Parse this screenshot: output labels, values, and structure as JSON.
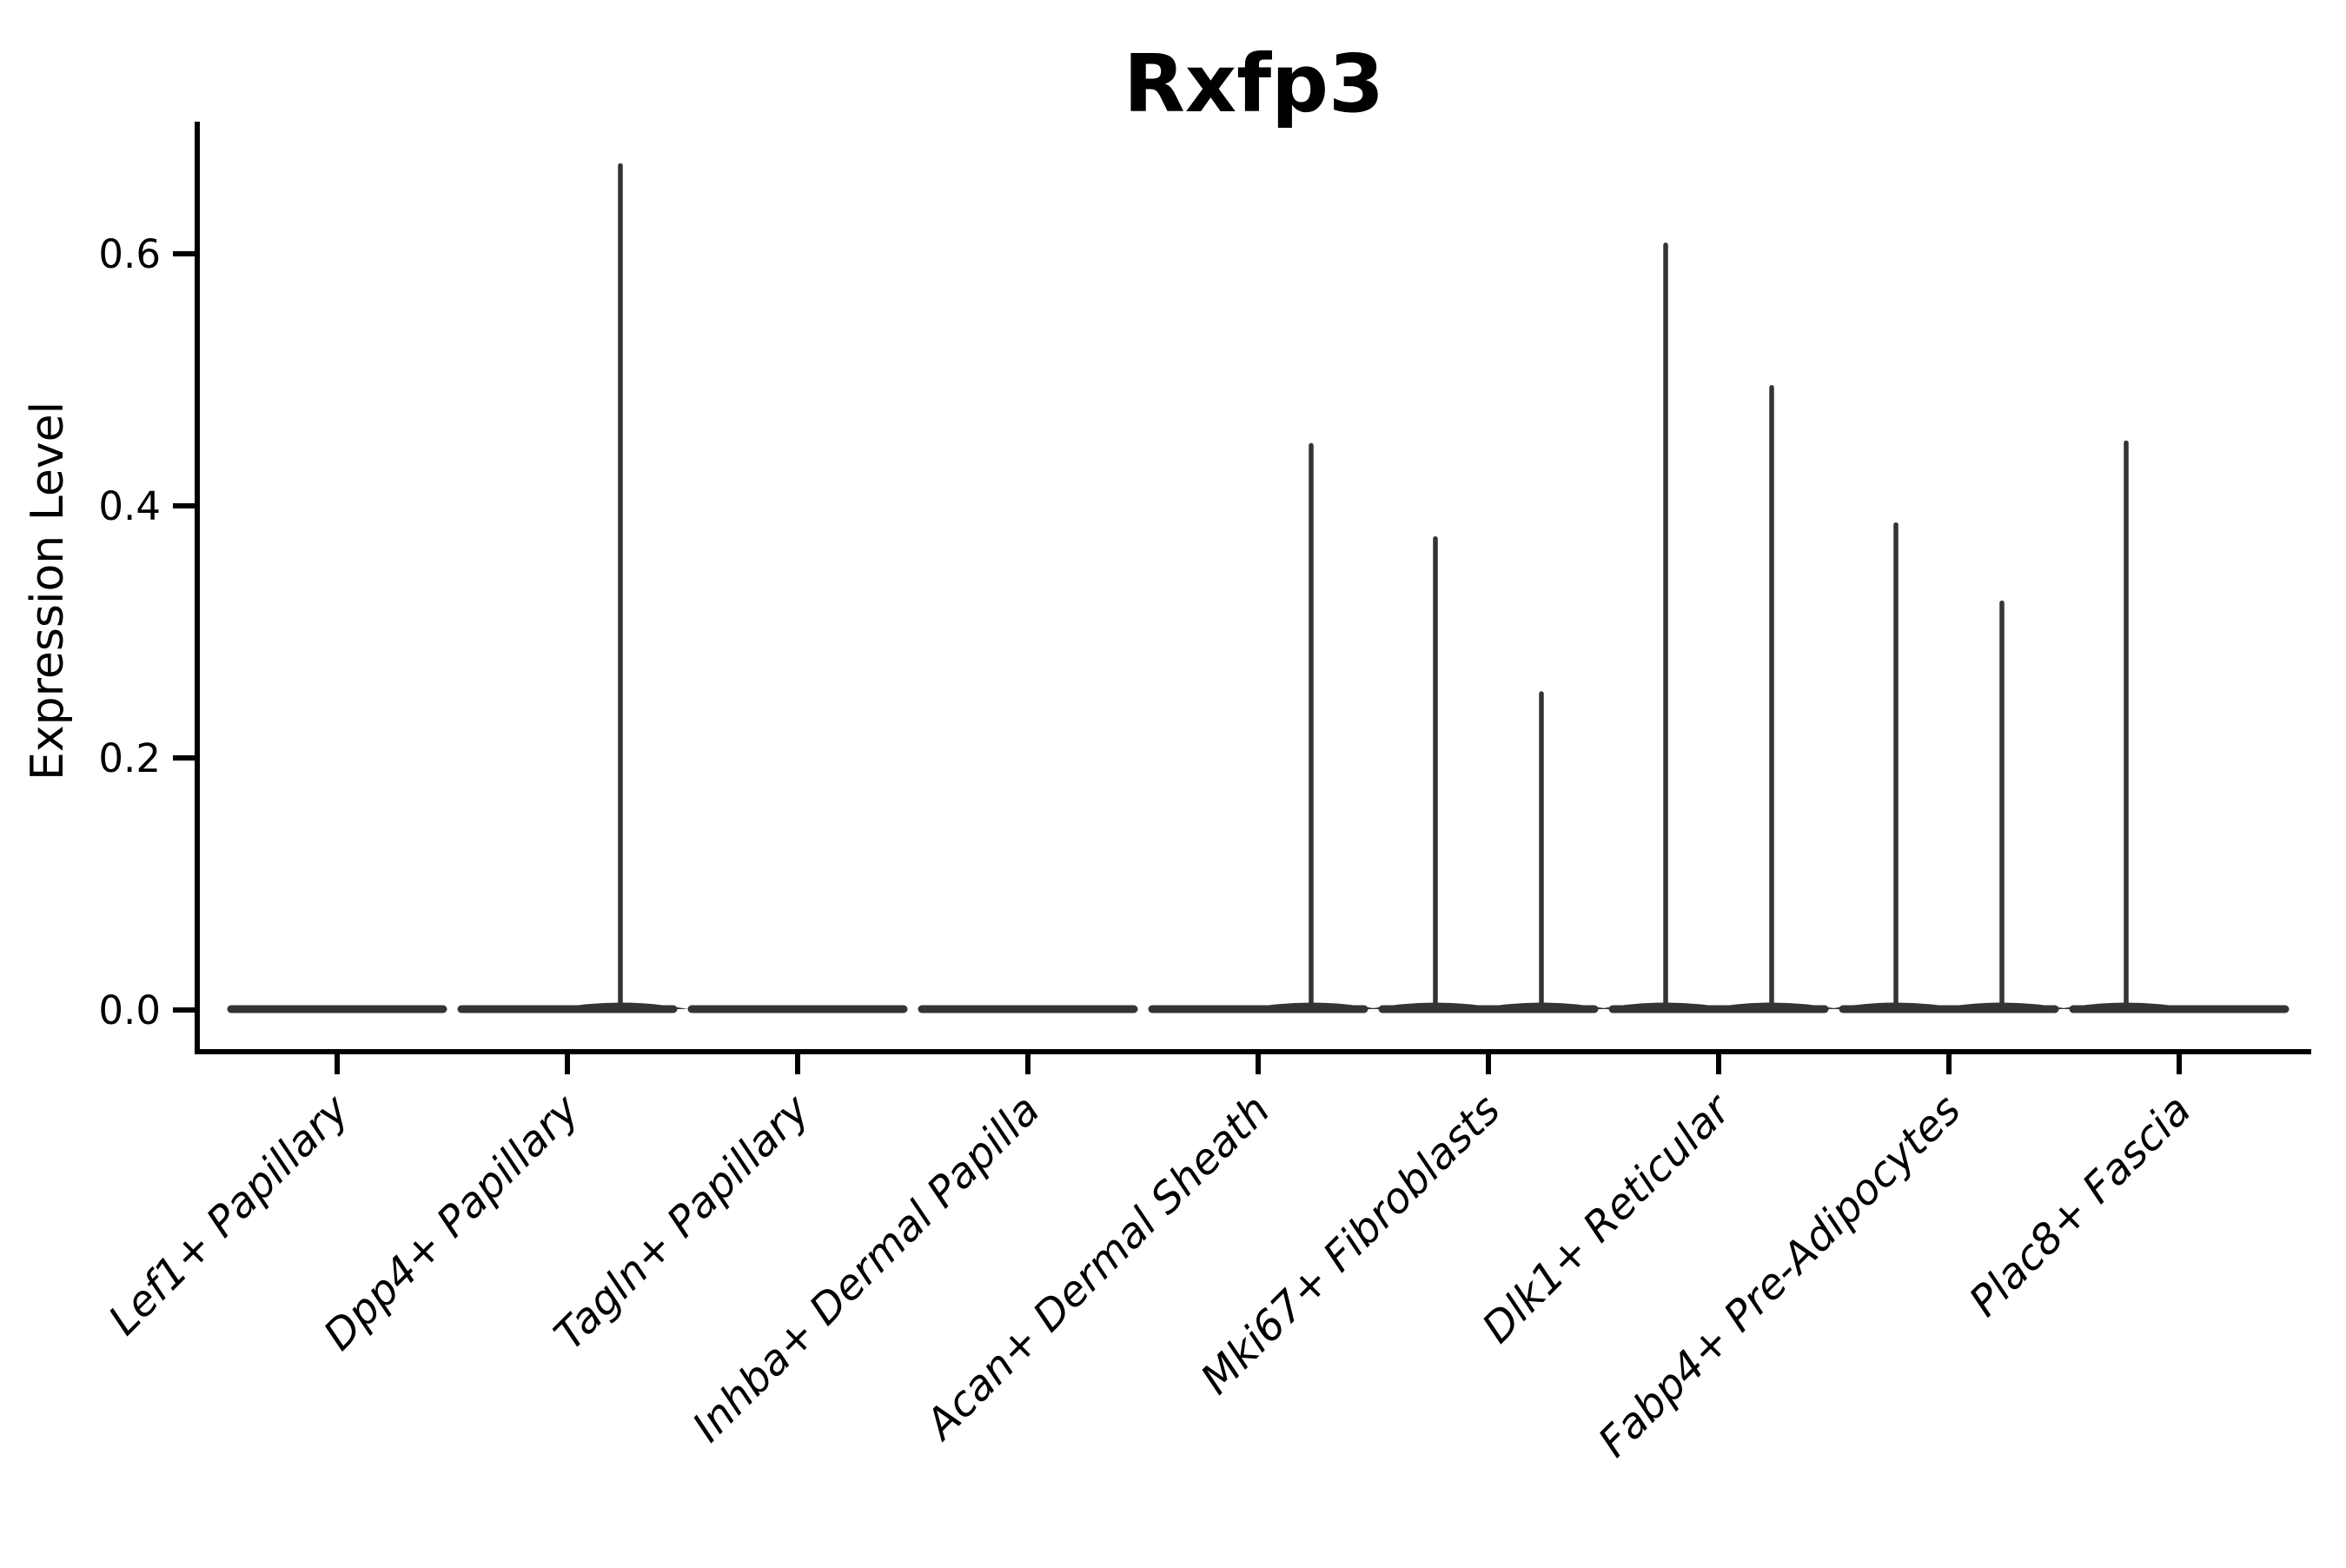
{
  "title": "Rxfp3",
  "colors": {
    "background": "#ffffff",
    "axis": "#000000",
    "text": "#000000",
    "violin": "#343434"
  },
  "chart_data": {
    "type": "violin",
    "title": "Rxfp3",
    "xlabel": "",
    "ylabel": "Expression Level",
    "ylim": [
      -0.032,
      0.705
    ],
    "yticks": [
      0.0,
      0.2,
      0.4,
      0.6
    ],
    "ytick_labels": [
      "0.0",
      "0.2",
      "0.4",
      "0.6"
    ],
    "grid": false,
    "legend_position": "none",
    "violins_per_category": 2,
    "baseline_value": 0.0,
    "categories": [
      {
        "label": "Lef1+ Papillary",
        "spikes": []
      },
      {
        "label": "Dpp4+ Papillary",
        "spikes": [
          {
            "side": "right",
            "value": 0.67
          }
        ]
      },
      {
        "label": "Tagln+ Papillary",
        "spikes": []
      },
      {
        "label": "Inhba+ Dermal Papilla",
        "spikes": []
      },
      {
        "label": "Acan+ Dermal Sheath",
        "spikes": [
          {
            "side": "right",
            "value": 0.448
          }
        ]
      },
      {
        "label": "Mki67+ Fibroblasts",
        "spikes": [
          {
            "side": "left",
            "value": 0.374
          },
          {
            "side": "right",
            "value": 0.251
          }
        ]
      },
      {
        "label": "Dlk1+ Reticular",
        "spikes": [
          {
            "side": "left",
            "value": 0.607
          },
          {
            "side": "right",
            "value": 0.494
          }
        ]
      },
      {
        "label": "Fabp4+ Pre-Adipocytes",
        "spikes": [
          {
            "side": "left",
            "value": 0.385
          },
          {
            "side": "right",
            "value": 0.323
          }
        ]
      },
      {
        "label": "Plac8+ Fascia",
        "spikes": [
          {
            "side": "left",
            "value": 0.45
          }
        ]
      }
    ]
  }
}
